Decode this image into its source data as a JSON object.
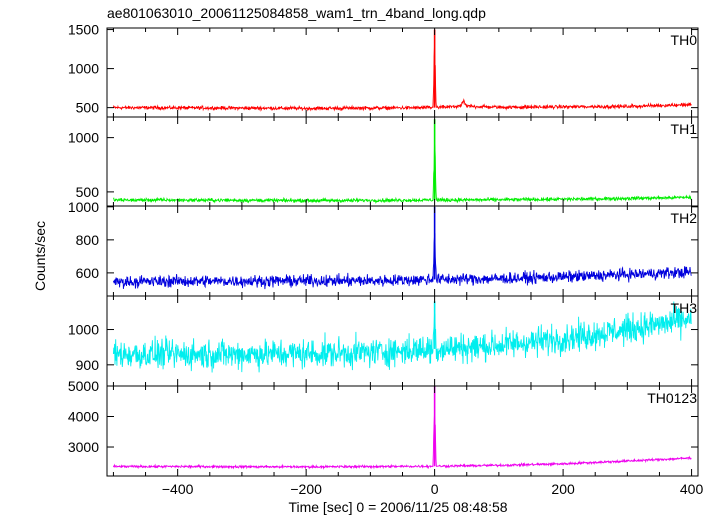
{
  "title": "ae801063010_20061125084858_wam1_trn_4band_long.qdp",
  "chart_data": {
    "type": "line",
    "title": "ae801063010_20061125084858_wam1_trn_4band_long.qdp",
    "xlabel": "Time [sec] 0 = 2006/11/25 08:48:58",
    "ylabel": "Counts/sec",
    "xlim": [
      -510,
      410
    ],
    "x_ticks": [
      -400,
      -200,
      0,
      200,
      400
    ],
    "x_tick_labels": [
      "−400",
      "−200",
      "0",
      "200",
      "400"
    ],
    "grid": false,
    "panels": [
      {
        "name": "TH0",
        "color": "#ff0000",
        "ylim": [
          380,
          1520
        ],
        "y_ticks": [
          500,
          1000,
          1500
        ],
        "series": [
          {
            "name": "TH0",
            "points": [
              [
                -500,
                500
              ],
              [
                -400,
                498
              ],
              [
                -300,
                495
              ],
              [
                -200,
                490
              ],
              [
                -100,
                495
              ],
              [
                0,
                500
              ],
              [
                45,
                520
              ],
              [
                100,
                505
              ],
              [
                200,
                510
              ],
              [
                300,
                515
              ],
              [
                400,
                540
              ]
            ]
          }
        ],
        "burst": {
          "time": 0,
          "peak": 1500
        },
        "feature": {
          "time": 45,
          "peak": 590
        }
      },
      {
        "name": "TH1",
        "color": "#00ee00",
        "ylim": [
          370,
          1190
        ],
        "y_ticks": [
          500,
          1000
        ],
        "series": [
          {
            "name": "TH1",
            "points": [
              [
                -500,
                425
              ],
              [
                -400,
                425
              ],
              [
                -300,
                423
              ],
              [
                -200,
                420
              ],
              [
                -100,
                422
              ],
              [
                0,
                425
              ],
              [
                100,
                428
              ],
              [
                200,
                432
              ],
              [
                300,
                440
              ],
              [
                400,
                450
              ]
            ]
          }
        ],
        "burst": {
          "time": 0,
          "peak": 1170
        }
      },
      {
        "name": "TH2",
        "color": "#0000dd",
        "ylim": [
          460,
          1005
        ],
        "y_ticks": [
          600,
          800,
          1000
        ],
        "series": [
          {
            "name": "TH2",
            "points": [
              [
                -500,
                545
              ],
              [
                -400,
                550
              ],
              [
                -300,
                550
              ],
              [
                -200,
                552
              ],
              [
                -100,
                552
              ],
              [
                0,
                560
              ],
              [
                100,
                565
              ],
              [
                200,
                575
              ],
              [
                300,
                590
              ],
              [
                400,
                605
              ]
            ]
          }
        ],
        "burst": {
          "time": 0,
          "peak": 1000
        }
      },
      {
        "name": "TH3",
        "color": "#00eeee",
        "ylim": [
          840,
          1095
        ],
        "y_ticks": [
          900,
          1000
        ],
        "series": [
          {
            "name": "TH3",
            "points": [
              [
                -500,
                930
              ],
              [
                -400,
                930
              ],
              [
                -300,
                930
              ],
              [
                -200,
                932
              ],
              [
                -100,
                935
              ],
              [
                0,
                945
              ],
              [
                100,
                955
              ],
              [
                200,
                975
              ],
              [
                300,
                1000
              ],
              [
                400,
                1030
              ]
            ]
          }
        ],
        "burst": {
          "time": 0,
          "peak": 1080
        }
      },
      {
        "name": "TH0123",
        "color": "#ee00ee",
        "ylim": [
          2050,
          5000
        ],
        "y_ticks": [
          3000,
          4000,
          5000
        ],
        "series": [
          {
            "name": "TH0123",
            "points": [
              [
                -500,
                2360
              ],
              [
                -400,
                2360
              ],
              [
                -300,
                2355
              ],
              [
                -200,
                2350
              ],
              [
                -100,
                2360
              ],
              [
                0,
                2370
              ],
              [
                100,
                2400
              ],
              [
                200,
                2450
              ],
              [
                300,
                2540
              ],
              [
                400,
                2640
              ]
            ]
          }
        ],
        "burst": {
          "time": 0,
          "peak": 4990
        }
      }
    ]
  }
}
